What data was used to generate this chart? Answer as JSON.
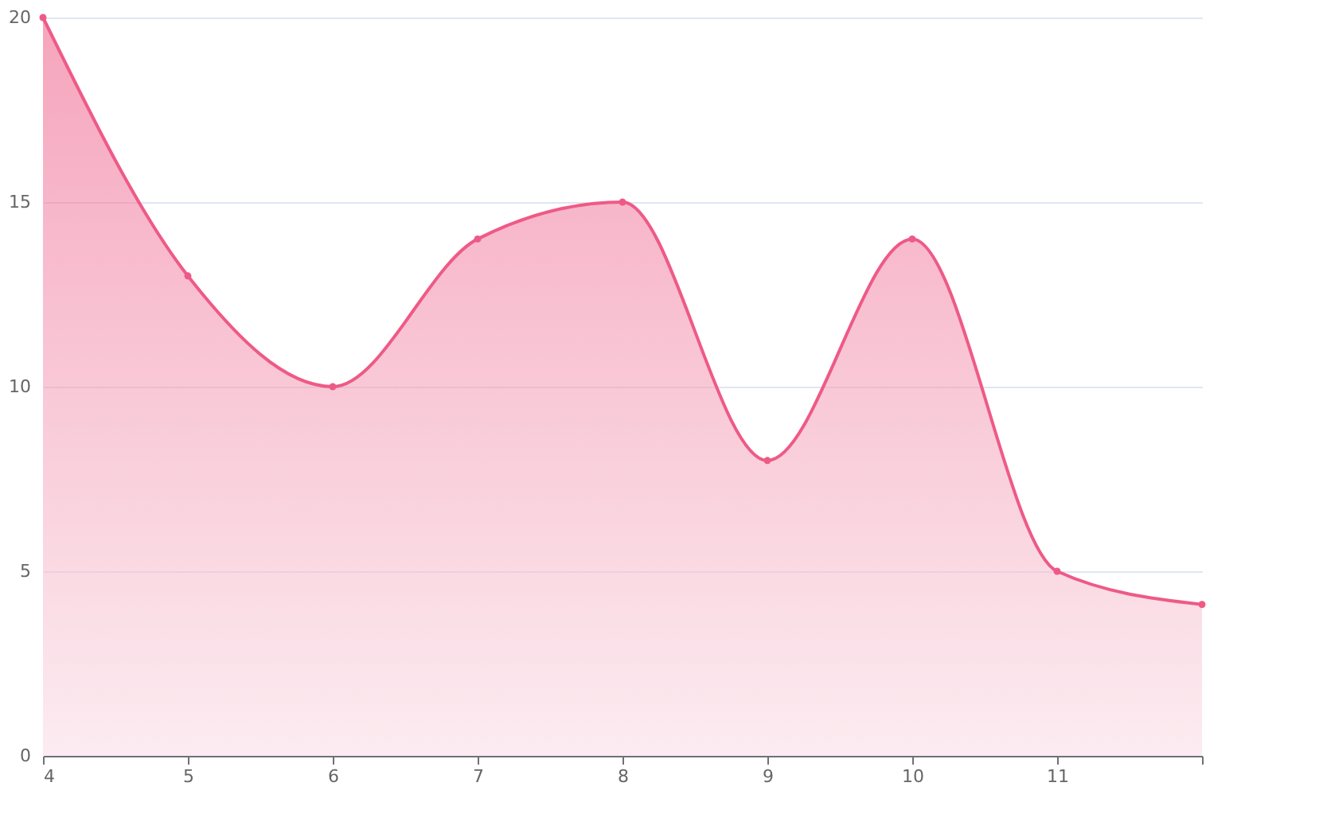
{
  "chart_data": {
    "type": "area",
    "categories": [
      "4",
      "5",
      "6",
      "7",
      "8",
      "9",
      "10",
      "11",
      null
    ],
    "series": [
      {
        "color": "#ee5a86",
        "values": [
          20,
          13,
          10,
          14,
          15,
          8,
          14,
          5,
          4.1
        ]
      }
    ],
    "ylim": [
      0,
      20
    ],
    "yticks": [
      0,
      5,
      10,
      15,
      20
    ],
    "grid": "y",
    "marker": "circle",
    "line_style": "solid"
  }
}
